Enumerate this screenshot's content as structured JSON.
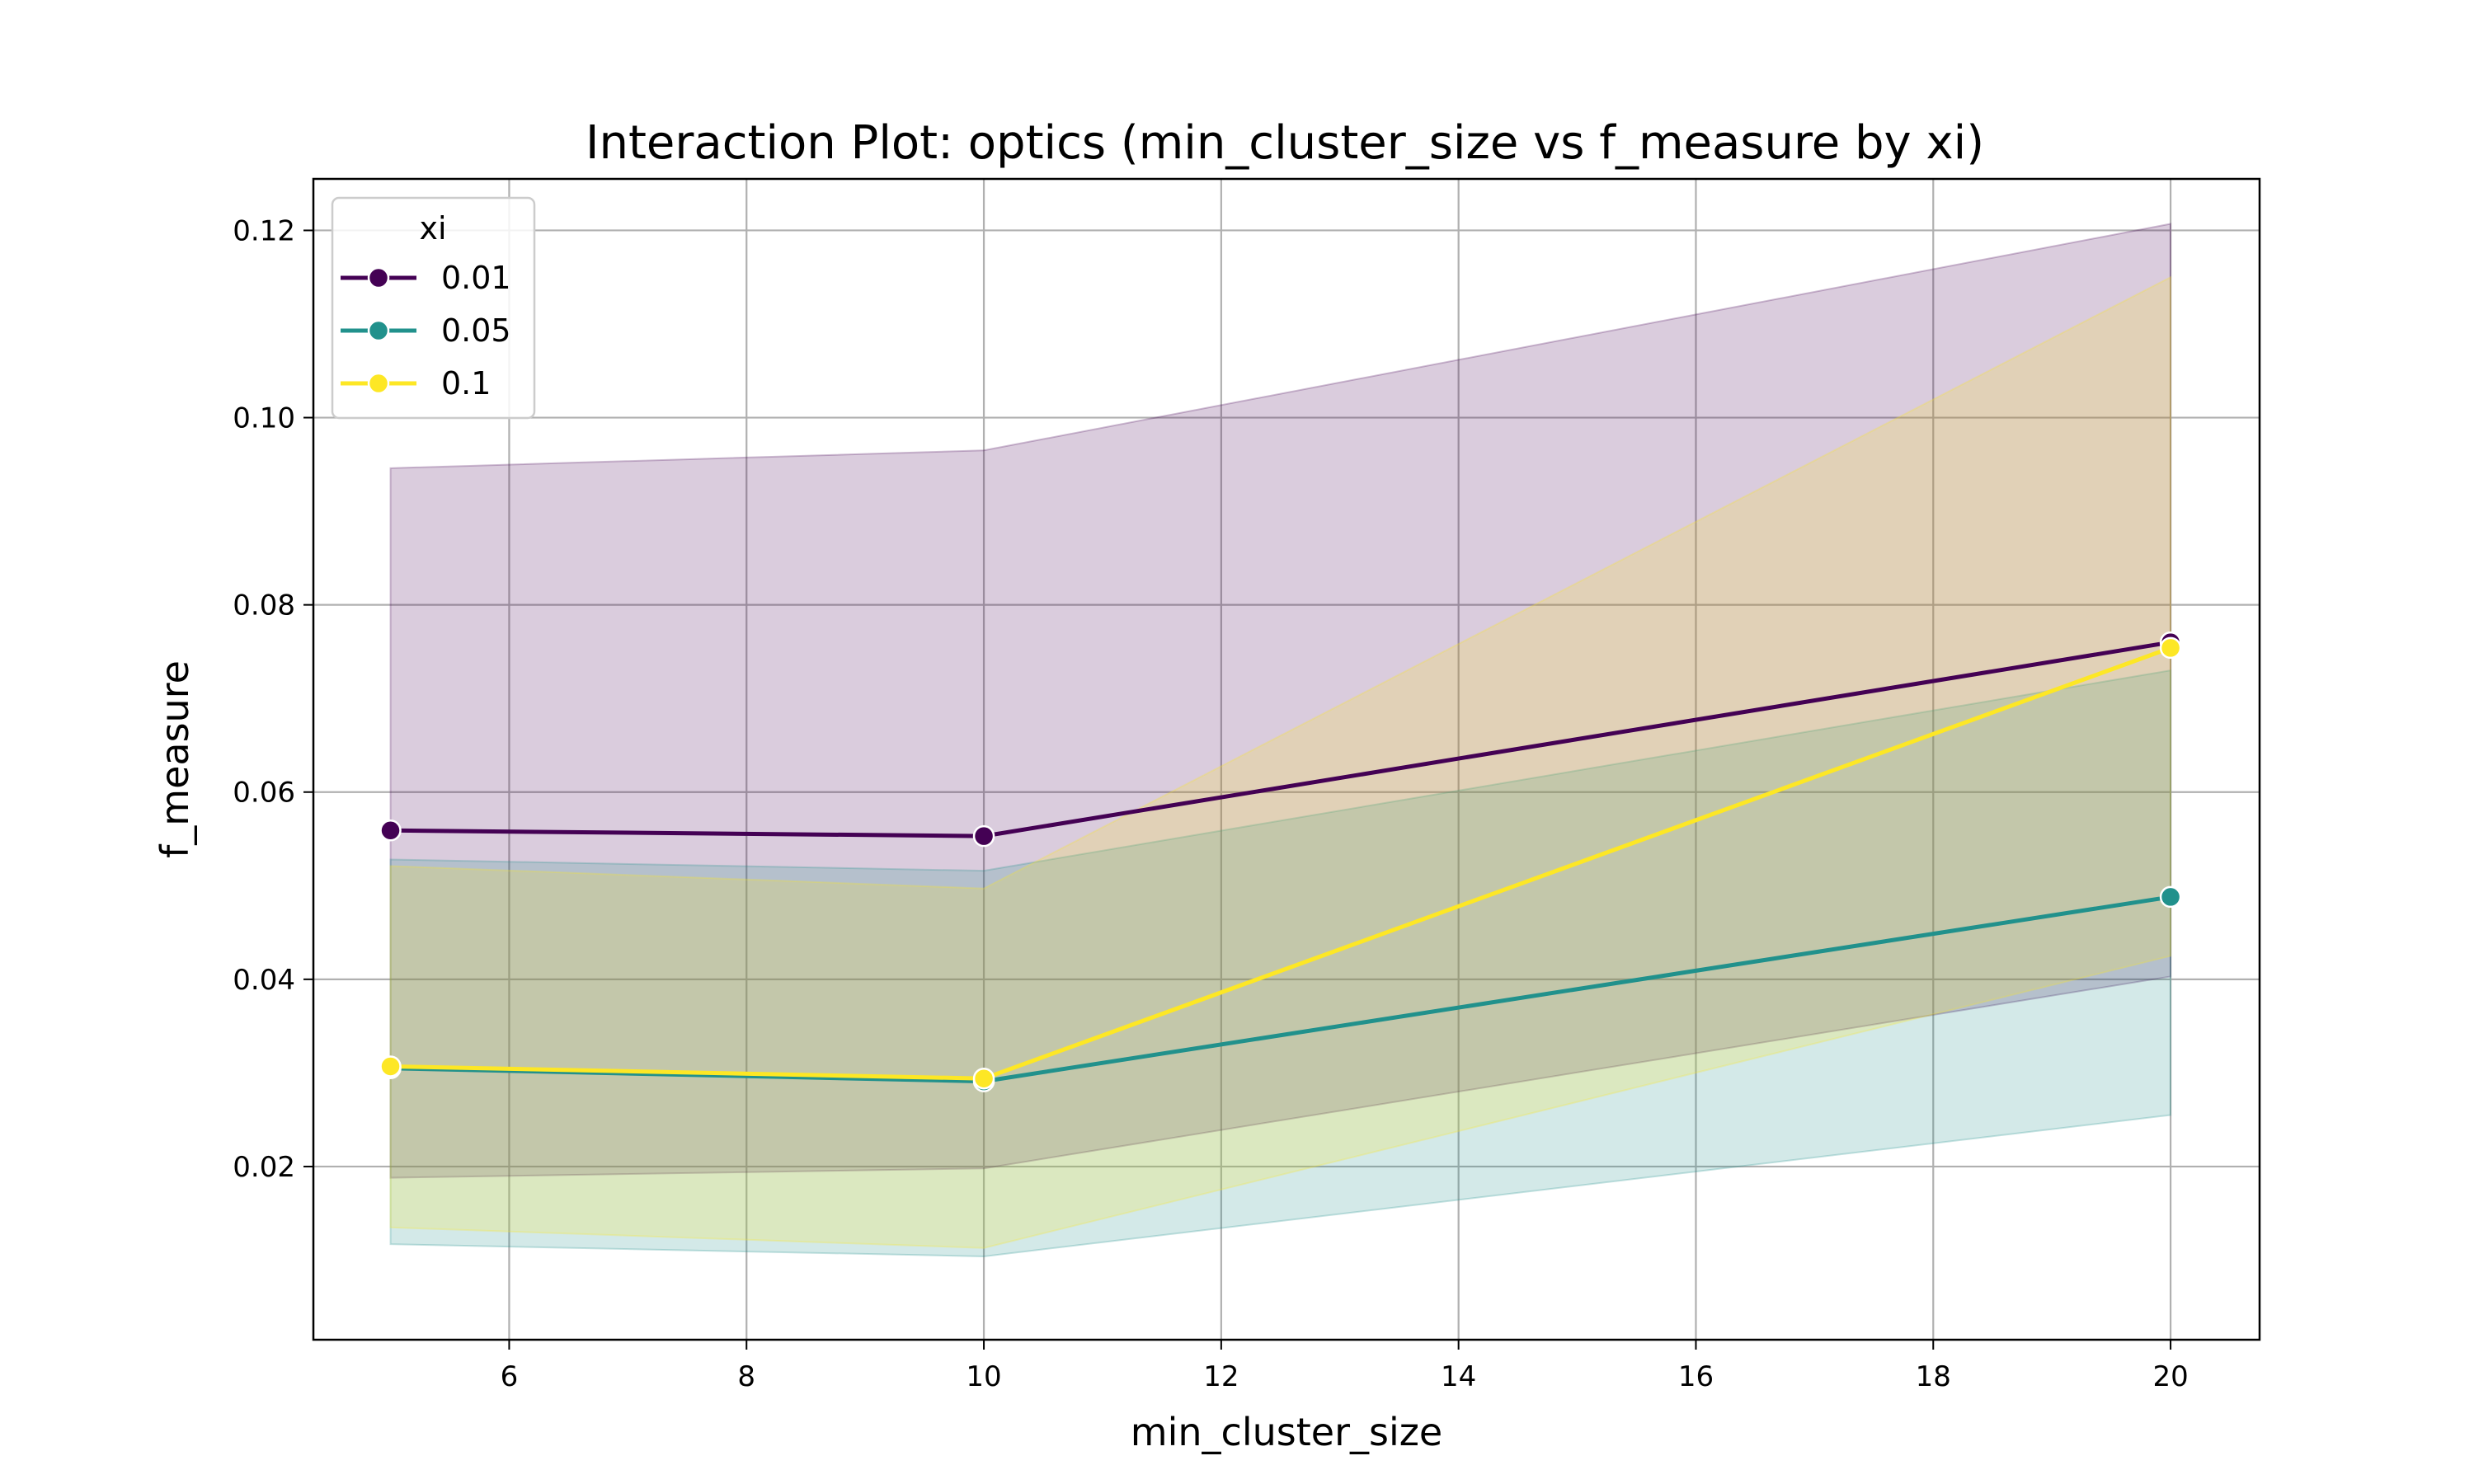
{
  "chart_data": {
    "type": "line",
    "title": "Interaction Plot: optics (min_cluster_size vs f_measure by xi)",
    "xlabel": "min_cluster_size",
    "ylabel": "f_measure",
    "xlim": [
      4.35,
      20.75
    ],
    "ylim": [
      0.0015,
      0.1255
    ],
    "xticks": [
      6,
      8,
      10,
      12,
      14,
      16,
      18,
      20
    ],
    "yticks": [
      0.02,
      0.04,
      0.06,
      0.08,
      0.1,
      0.12
    ],
    "xtick_labels": [
      "6",
      "8",
      "10",
      "12",
      "14",
      "16",
      "18",
      "20"
    ],
    "ytick_labels": [
      "0.02",
      "0.04",
      "0.06",
      "0.08",
      "0.10",
      "0.12"
    ],
    "grid": true,
    "legend": {
      "title": "xi",
      "placement": "top-left"
    },
    "x": [
      5,
      10,
      20
    ],
    "series": [
      {
        "name": "0.01",
        "color": "#440154",
        "values": [
          0.0559,
          0.0553,
          0.076
        ],
        "ci_low": [
          0.0188,
          0.0198,
          0.0403
        ],
        "ci_high": [
          0.0946,
          0.0965,
          0.1207
        ]
      },
      {
        "name": "0.05",
        "color": "#21918c",
        "values": [
          0.0305,
          0.0291,
          0.0488
        ],
        "ci_low": [
          0.0117,
          0.0104,
          0.0255
        ],
        "ci_high": [
          0.0528,
          0.0516,
          0.073
        ]
      },
      {
        "name": "0.1",
        "color": "#fde725",
        "values": [
          0.0307,
          0.0294,
          0.0754
        ],
        "ci_low": [
          0.0135,
          0.0113,
          0.0425
        ],
        "ci_high": [
          0.0521,
          0.0497,
          0.115
        ]
      }
    ]
  }
}
